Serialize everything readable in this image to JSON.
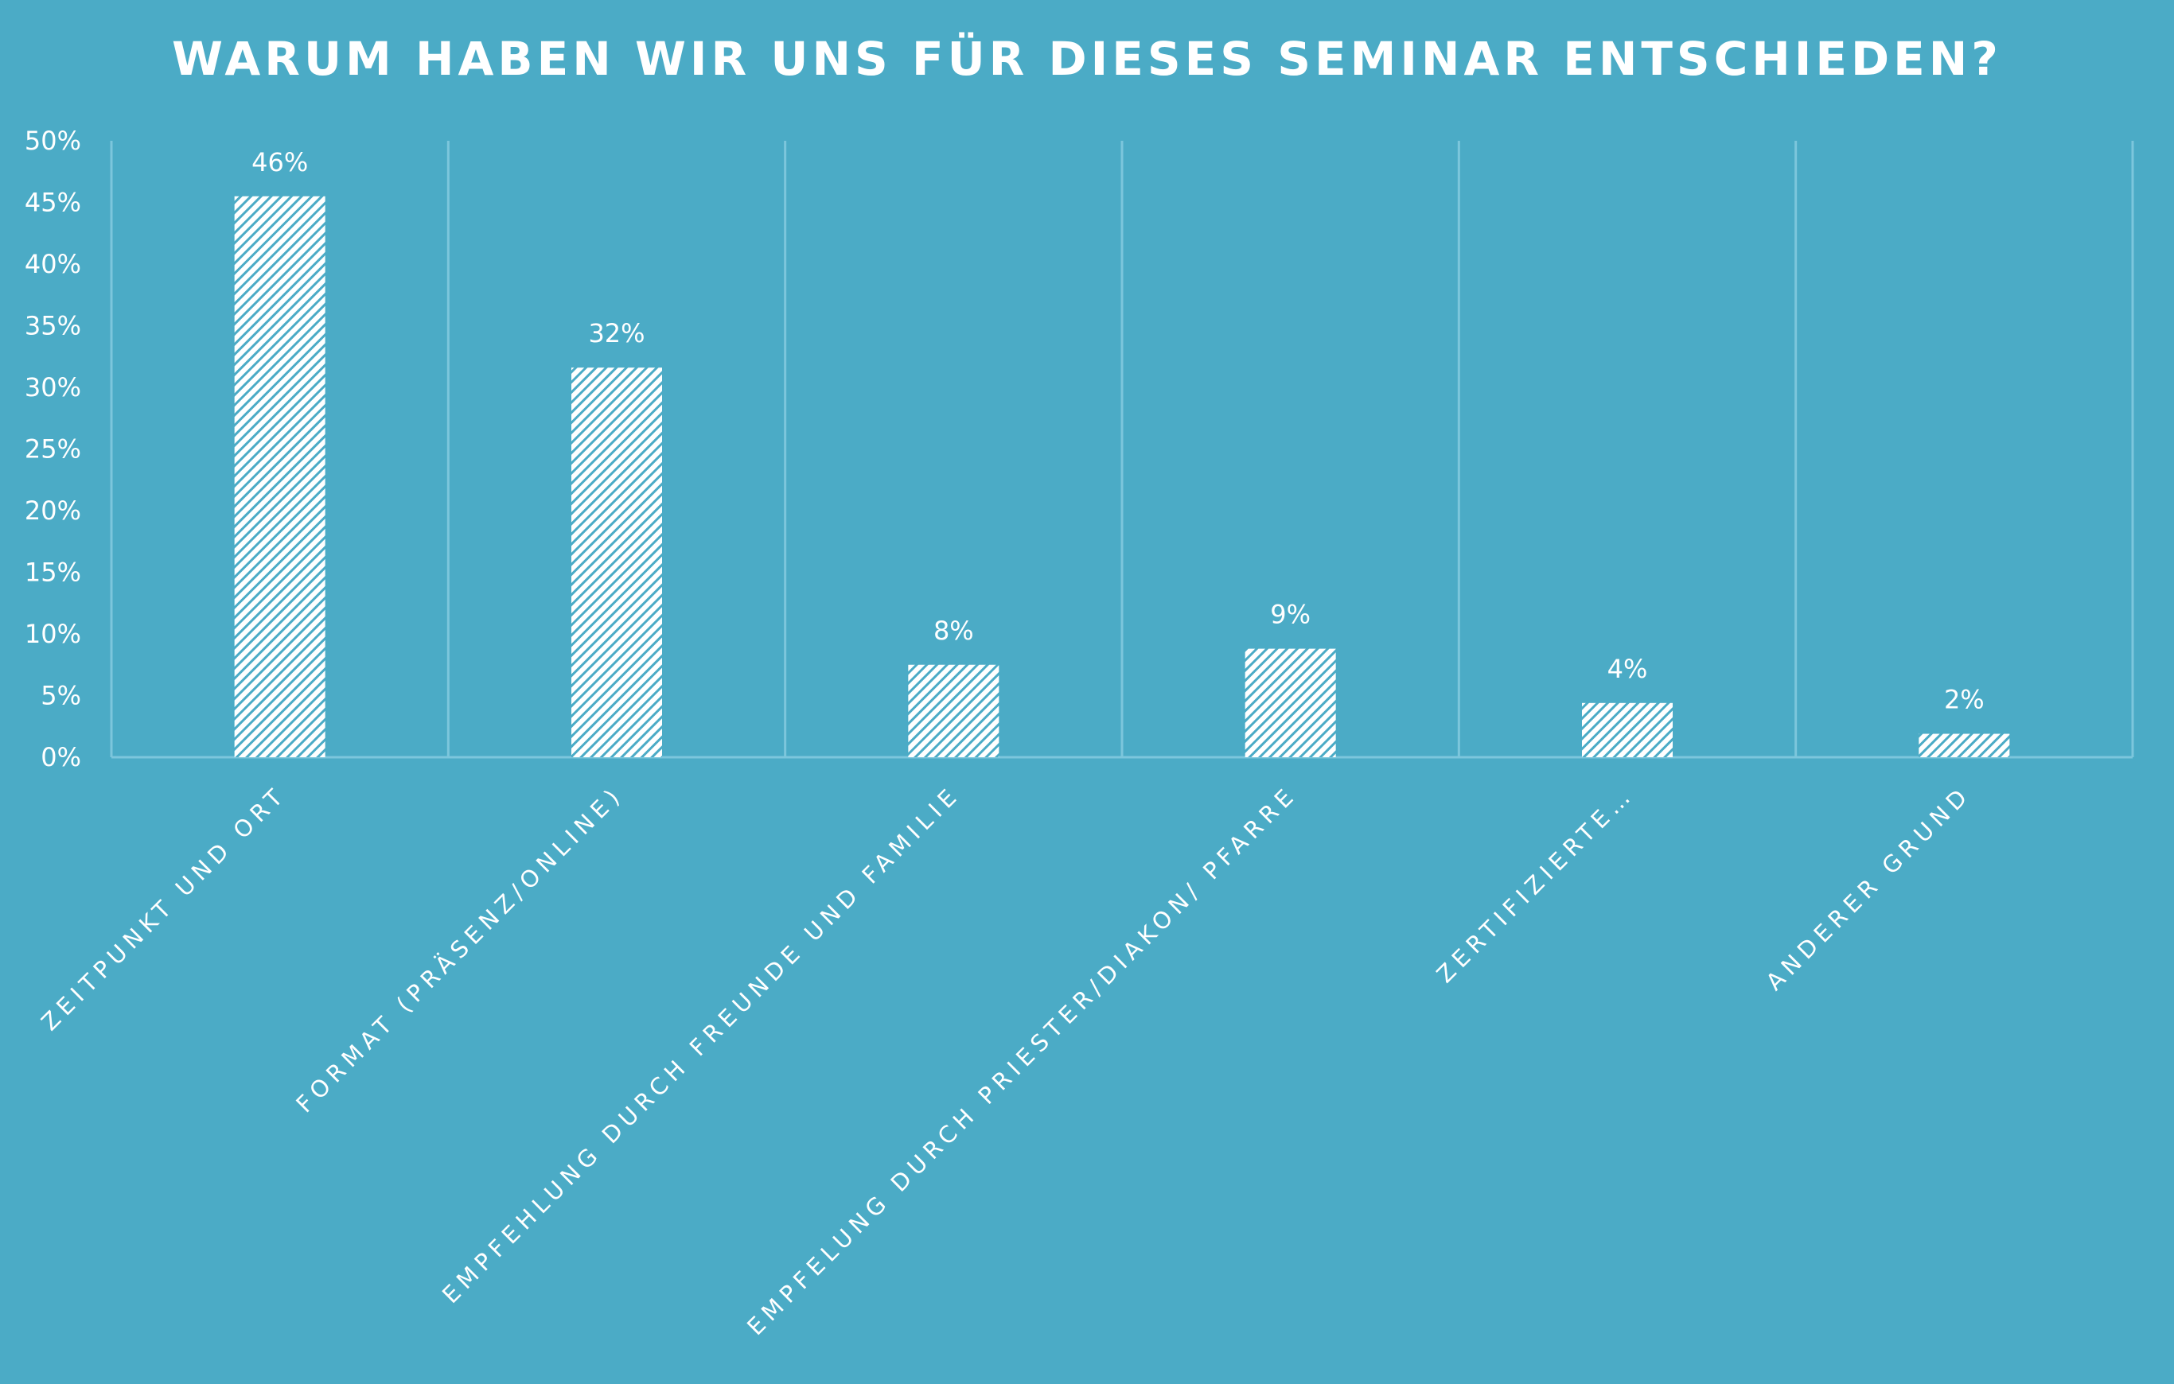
{
  "colors": {
    "background": "#4BABC6",
    "bar": "#ffffff",
    "gridline": "#7CC6DC",
    "text": "#ffffff"
  },
  "chart_data": {
    "type": "bar",
    "title": "WARUM HABEN WIR UNS FÜR DIESES SEMINAR ENTSCHIEDEN?",
    "xlabel": "",
    "ylabel": "",
    "ylim": [
      0,
      50
    ],
    "yticks": [
      0,
      5,
      10,
      15,
      20,
      25,
      30,
      35,
      40,
      45,
      50
    ],
    "ytick_labels": [
      "0%",
      "5%",
      "10%",
      "15%",
      "20%",
      "25%",
      "30%",
      "35%",
      "40%",
      "45%",
      "50%"
    ],
    "grid": "vertical category separators",
    "legend": "none",
    "bar_fill": "diagonal hatch",
    "categories": [
      "ZEITPUNKT UND ORT",
      "FORMAT (PRÄSENZ/ONLINE)",
      "EMPFEHLUNG DURCH FREUNDE UND FAMILIE",
      "EMPFELUNG DURCH PRIESTER/DIAKON/ PFARRE",
      "ZERTIFIZIERTE…",
      "ANDERER GRUND"
    ],
    "values": [
      45.5,
      31.6,
      7.5,
      8.8,
      4.4,
      1.9
    ],
    "data_labels": [
      "46%",
      "32%",
      "8%",
      "9%",
      "4%",
      "2%"
    ]
  }
}
